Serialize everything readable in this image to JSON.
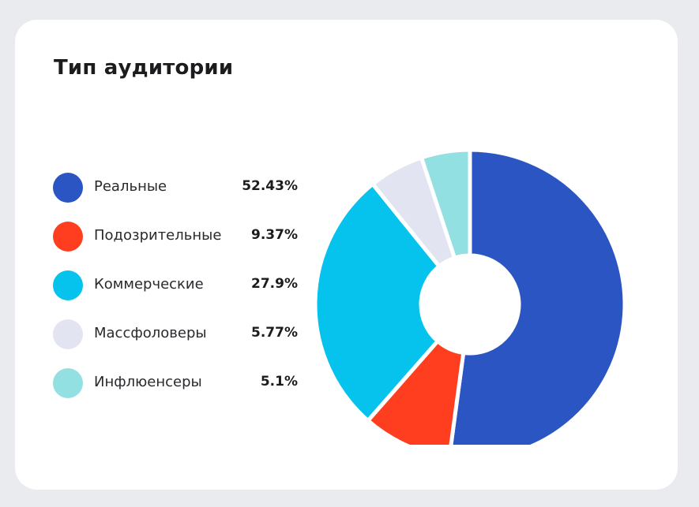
{
  "card": {
    "title": "Тип аудитории"
  },
  "chart_data": {
    "type": "pie",
    "categories": [
      "Реальные",
      "Подозрительные",
      "Коммерческие",
      "Массфоловеры",
      "Инфлюенсеры"
    ],
    "values": [
      52.43,
      9.37,
      27.9,
      5.77,
      5.1
    ],
    "value_labels": [
      "52.43%",
      "9.37%",
      "27.9%",
      "5.77%",
      "5.1%"
    ],
    "colors": [
      "#2b55c3",
      "#ff3e1f",
      "#05c3ed",
      "#e3e4f2",
      "#93e0e3"
    ],
    "donut": true,
    "legend_position": "left"
  }
}
